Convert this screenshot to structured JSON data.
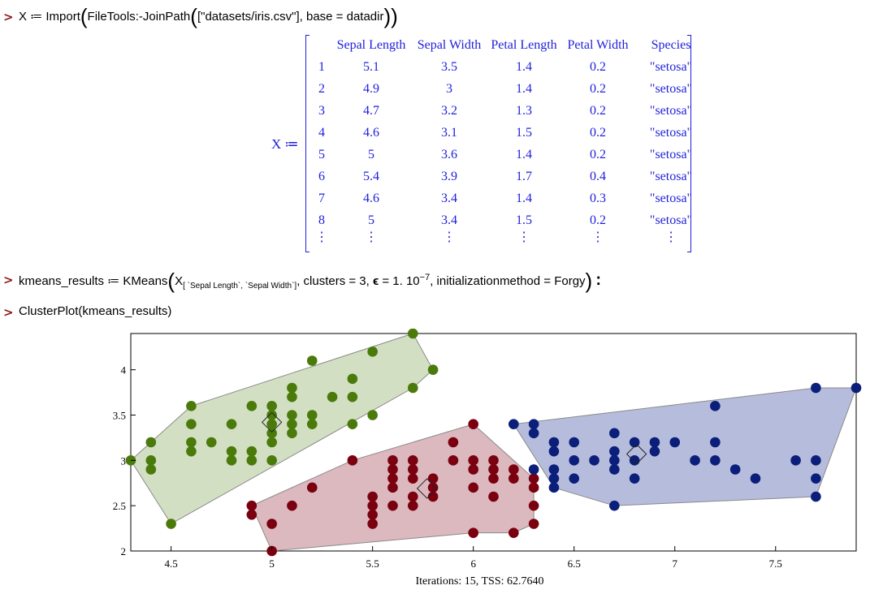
{
  "commands": {
    "prompt": ">",
    "import": {
      "lhs": "X",
      "assign": "≔",
      "fn": "Import",
      "inner_fn": "FileTools:-JoinPath",
      "list_open": "[",
      "path_str": "\"datasets/iris.csv\"",
      "list_close": "]",
      "base_arg": ", base = datadir"
    },
    "kmeans": {
      "lhs": "kmeans_results",
      "assign": "≔",
      "fn": "KMeans",
      "var": "X",
      "subscript": "[ `Sepal Length`, `Sepal Width`]",
      "args_pre": ", clusters = 3, ",
      "eps_sym": "ϵ",
      "eps_val": " = 1. 10",
      "exp": "−7",
      "args_post": ", initializationmethod = Forgy",
      "terminator": ":"
    },
    "clusterplot": "ClusterPlot(kmeans_results)"
  },
  "output": {
    "lhs": "X ≔",
    "columns": [
      "",
      "Sepal Length",
      "Sepal Width",
      "Petal Length",
      "Petal Width",
      "Species"
    ],
    "rows": [
      [
        "1",
        "5.1",
        "3.5",
        "1.4",
        "0.2",
        "\"setosa\""
      ],
      [
        "2",
        "4.9",
        "3",
        "1.4",
        "0.2",
        "\"setosa\""
      ],
      [
        "3",
        "4.7",
        "3.2",
        "1.3",
        "0.2",
        "\"setosa\""
      ],
      [
        "4",
        "4.6",
        "3.1",
        "1.5",
        "0.2",
        "\"setosa\""
      ],
      [
        "5",
        "5",
        "3.6",
        "1.4",
        "0.2",
        "\"setosa\""
      ],
      [
        "6",
        "5.4",
        "3.9",
        "1.7",
        "0.4",
        "\"setosa\""
      ],
      [
        "7",
        "4.6",
        "3.4",
        "1.4",
        "0.3",
        "\"setosa\""
      ],
      [
        "8",
        "5",
        "3.4",
        "1.5",
        "0.2",
        "\"setosa\""
      ],
      [
        "⋮",
        "⋮",
        "⋮",
        "⋮",
        "⋮",
        "⋮"
      ]
    ]
  },
  "chart_data": {
    "type": "scatter",
    "title": "",
    "xlabel": "",
    "ylabel": "",
    "footer": "Iterations: 15, TSS: 62.7640",
    "xlim": [
      4.3,
      7.9
    ],
    "ylim": [
      2.0,
      4.4
    ],
    "xticks": [
      "4.5",
      "5",
      "5.5",
      "6",
      "6.5",
      "7",
      "7.5"
    ],
    "yticks": [
      "2",
      "2.5",
      "3",
      "3.5",
      "4"
    ],
    "series": [
      {
        "color": "#4a7a0a",
        "fill": "#d3dfc3",
        "centroid": [
          5.0,
          3.42
        ],
        "hull": [
          [
            4.3,
            3.0
          ],
          [
            4.4,
            3.2
          ],
          [
            4.6,
            3.6
          ],
          [
            5.7,
            4.4
          ],
          [
            5.8,
            4.0
          ],
          [
            5.7,
            3.8
          ],
          [
            4.5,
            2.3
          ]
        ],
        "points": [
          [
            4.3,
            3.0
          ],
          [
            4.4,
            2.9
          ],
          [
            4.4,
            3.0
          ],
          [
            4.4,
            3.2
          ],
          [
            4.5,
            2.3
          ],
          [
            4.6,
            3.1
          ],
          [
            4.6,
            3.2
          ],
          [
            4.6,
            3.4
          ],
          [
            4.6,
            3.6
          ],
          [
            4.7,
            3.2
          ],
          [
            4.8,
            3.0
          ],
          [
            4.8,
            3.1
          ],
          [
            4.8,
            3.4
          ],
          [
            4.9,
            3.0
          ],
          [
            4.9,
            3.1
          ],
          [
            4.9,
            3.6
          ],
          [
            5.0,
            3.0
          ],
          [
            5.0,
            3.2
          ],
          [
            5.0,
            3.3
          ],
          [
            5.0,
            3.4
          ],
          [
            5.0,
            3.5
          ],
          [
            5.0,
            3.6
          ],
          [
            5.1,
            3.3
          ],
          [
            5.1,
            3.4
          ],
          [
            5.1,
            3.5
          ],
          [
            5.1,
            3.7
          ],
          [
            5.1,
            3.8
          ],
          [
            5.2,
            3.4
          ],
          [
            5.2,
            3.5
          ],
          [
            5.2,
            4.1
          ],
          [
            5.3,
            3.7
          ],
          [
            5.4,
            3.4
          ],
          [
            5.4,
            3.7
          ],
          [
            5.4,
            3.9
          ],
          [
            5.5,
            3.5
          ],
          [
            5.5,
            4.2
          ],
          [
            5.7,
            3.8
          ],
          [
            5.7,
            4.4
          ],
          [
            5.8,
            4.0
          ]
        ]
      },
      {
        "color": "#7a0010",
        "fill": "#dcb8bf",
        "centroid": [
          5.77,
          2.69
        ],
        "hull": [
          [
            4.9,
            2.5
          ],
          [
            5.0,
            2.0
          ],
          [
            6.0,
            2.2
          ],
          [
            6.2,
            2.2
          ],
          [
            6.3,
            2.3
          ],
          [
            6.3,
            2.8
          ],
          [
            6.0,
            3.4
          ],
          [
            5.4,
            3.0
          ]
        ],
        "points": [
          [
            4.9,
            2.4
          ],
          [
            4.9,
            2.5
          ],
          [
            5.0,
            2.0
          ],
          [
            5.0,
            2.3
          ],
          [
            5.1,
            2.5
          ],
          [
            5.2,
            2.7
          ],
          [
            5.4,
            3.0
          ],
          [
            5.5,
            2.3
          ],
          [
            5.5,
            2.4
          ],
          [
            5.5,
            2.5
          ],
          [
            5.5,
            2.6
          ],
          [
            5.6,
            2.5
          ],
          [
            5.6,
            2.7
          ],
          [
            5.6,
            2.8
          ],
          [
            5.6,
            2.9
          ],
          [
            5.6,
            3.0
          ],
          [
            5.7,
            2.5
          ],
          [
            5.7,
            2.6
          ],
          [
            5.7,
            2.8
          ],
          [
            5.7,
            2.9
          ],
          [
            5.7,
            3.0
          ],
          [
            5.8,
            2.6
          ],
          [
            5.8,
            2.7
          ],
          [
            5.8,
            2.8
          ],
          [
            5.9,
            3.0
          ],
          [
            5.9,
            3.2
          ],
          [
            6.0,
            2.2
          ],
          [
            6.0,
            2.7
          ],
          [
            6.0,
            2.9
          ],
          [
            6.0,
            3.0
          ],
          [
            6.0,
            3.4
          ],
          [
            6.1,
            2.6
          ],
          [
            6.1,
            2.8
          ],
          [
            6.1,
            2.9
          ],
          [
            6.1,
            3.0
          ],
          [
            6.2,
            2.2
          ],
          [
            6.2,
            2.8
          ],
          [
            6.2,
            2.9
          ],
          [
            6.3,
            2.3
          ],
          [
            6.3,
            2.5
          ],
          [
            6.3,
            2.7
          ],
          [
            6.3,
            2.8
          ]
        ]
      },
      {
        "color": "#0a1e7a",
        "fill": "#b6bcdc",
        "centroid": [
          6.81,
          3.07
        ],
        "hull": [
          [
            6.2,
            3.4
          ],
          [
            7.7,
            3.8
          ],
          [
            7.9,
            3.8
          ],
          [
            7.7,
            2.6
          ],
          [
            6.7,
            2.5
          ],
          [
            6.4,
            2.7
          ]
        ],
        "points": [
          [
            6.2,
            3.4
          ],
          [
            6.3,
            2.9
          ],
          [
            6.3,
            3.3
          ],
          [
            6.3,
            3.4
          ],
          [
            6.4,
            2.7
          ],
          [
            6.4,
            2.8
          ],
          [
            6.4,
            2.9
          ],
          [
            6.4,
            3.1
          ],
          [
            6.4,
            3.2
          ],
          [
            6.5,
            2.8
          ],
          [
            6.5,
            3.0
          ],
          [
            6.5,
            3.2
          ],
          [
            6.6,
            3.0
          ],
          [
            6.7,
            2.5
          ],
          [
            6.7,
            2.9
          ],
          [
            6.7,
            3.0
          ],
          [
            6.7,
            3.1
          ],
          [
            6.7,
            3.3
          ],
          [
            6.8,
            2.8
          ],
          [
            6.8,
            3.0
          ],
          [
            6.8,
            3.2
          ],
          [
            6.9,
            3.1
          ],
          [
            6.9,
            3.2
          ],
          [
            7.0,
            3.2
          ],
          [
            7.1,
            3.0
          ],
          [
            7.2,
            3.0
          ],
          [
            7.2,
            3.2
          ],
          [
            7.2,
            3.6
          ],
          [
            7.3,
            2.9
          ],
          [
            7.4,
            2.8
          ],
          [
            7.6,
            3.0
          ],
          [
            7.7,
            2.6
          ],
          [
            7.7,
            2.8
          ],
          [
            7.7,
            3.0
          ],
          [
            7.7,
            3.8
          ],
          [
            7.9,
            3.8
          ]
        ]
      }
    ]
  }
}
